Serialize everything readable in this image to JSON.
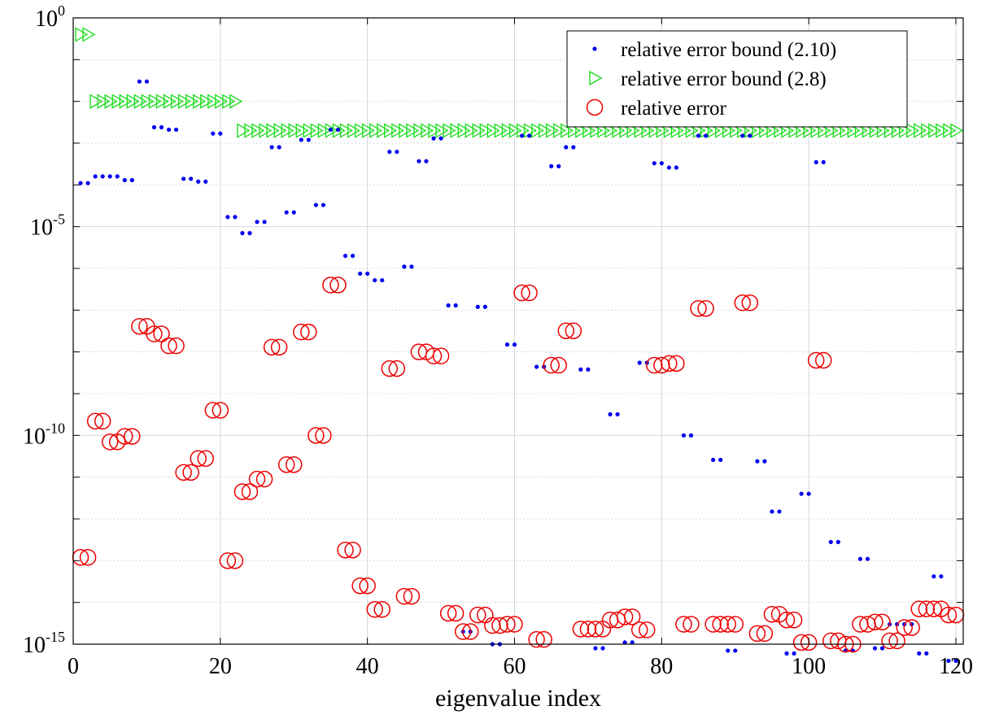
{
  "chart_data": {
    "type": "scatter",
    "xlabel": "eigenvalue index",
    "ylabel": "",
    "title": "",
    "xlim": [
      0,
      121
    ],
    "ylim_log10": [
      -15,
      0
    ],
    "yscale": "log",
    "grid": true,
    "legend_position": "top-right",
    "x_ticks": [
      "0",
      "20",
      "40",
      "60",
      "80",
      "100",
      "120"
    ],
    "y_ticks": [
      {
        "base": "10",
        "exp": "0"
      },
      {
        "base": "10",
        "exp": "-5"
      },
      {
        "base": "10",
        "exp": "-10"
      },
      {
        "base": "10",
        "exp": "-15"
      }
    ],
    "series": [
      {
        "name": "relative error bound (2.10)",
        "marker": "dot",
        "color": "#0000ee",
        "x": [
          1,
          2,
          3,
          4,
          5,
          6,
          7,
          8,
          9,
          10,
          11,
          12,
          13,
          14,
          15,
          16,
          17,
          18,
          19,
          20,
          21,
          22,
          23,
          24,
          25,
          26,
          27,
          28,
          29,
          30,
          31,
          32,
          33,
          34,
          35,
          36,
          37,
          38,
          39,
          40,
          41,
          42,
          43,
          44,
          45,
          46,
          47,
          48,
          49,
          50,
          51,
          52,
          53,
          54,
          55,
          56,
          57,
          58,
          59,
          60,
          61,
          62,
          63,
          64,
          65,
          66,
          67,
          68,
          69,
          70,
          71,
          72,
          73,
          74,
          75,
          76,
          77,
          78,
          79,
          80,
          81,
          82,
          83,
          84,
          85,
          86,
          87,
          88,
          89,
          90,
          91,
          92,
          93,
          94,
          95,
          96,
          97,
          98,
          99,
          100,
          101,
          102,
          103,
          104,
          105,
          106,
          107,
          108,
          109,
          110,
          111,
          112,
          113,
          114,
          115,
          116,
          117,
          118,
          119,
          120
        ],
        "y": [
          "1.1e-4",
          "1.1e-4",
          "1.6e-4",
          "1.6e-4",
          "1.6e-4",
          "1.6e-4",
          "1.3e-4",
          "1.3e-4",
          "0.03",
          "0.03",
          "2.4e-3",
          "2.4e-3",
          "2.1e-3",
          "2.1e-3",
          "1.4e-4",
          "1.4e-4",
          "1.2e-4",
          "1.2e-4",
          "1.7e-3",
          "1.7e-3",
          "1.7e-5",
          "1.7e-5",
          "7e-6",
          "7e-6",
          "1.3e-5",
          "1.3e-5",
          "8e-4",
          "8e-4",
          "2.2e-5",
          "2.2e-5",
          "1.2e-3",
          "1.2e-3",
          "3.3e-5",
          "3.3e-5",
          "2.1e-3",
          "2.1e-3",
          "2e-6",
          "2e-6",
          "7.5e-7",
          "7.5e-7",
          "5.2e-7",
          "5.2e-7",
          "6.2e-4",
          "6.2e-4",
          "1.1e-6",
          "1.1e-6",
          "3.7e-4",
          "3.7e-4",
          "1.3e-3",
          "1.3e-3",
          "1.3e-7",
          "1.3e-7",
          "2e-15",
          "2e-15",
          "1.2e-7",
          "1.2e-7",
          "1e-15",
          "1e-15",
          "1.5e-8",
          "1.5e-8",
          "1.5e-3",
          "1.5e-3",
          "4.4e-9",
          "4.4e-9",
          "2.8e-4",
          "2.8e-4",
          "8e-4",
          "8e-4",
          "3.8e-9",
          "3.8e-9",
          "8e-16",
          "8e-16",
          "3.2e-10",
          "3.2e-10",
          "1.1e-15",
          "1.1e-15",
          "5.5e-9",
          "5.5e-9",
          "3.3e-4",
          "3.3e-4",
          "2.6e-4",
          "2.6e-4",
          "1e-10",
          "1e-10",
          "1.5e-3",
          "1.5e-3",
          "2.6e-11",
          "2.6e-11",
          "7e-16",
          "7e-16",
          "1.5e-3",
          "1.5e-3",
          "2.4e-11",
          "2.4e-11",
          "1.5e-12",
          "1.5e-12",
          "6e-16",
          "6e-16",
          "4e-12",
          "4e-12",
          "3.5e-4",
          "3.5e-4",
          "2.8e-13",
          "2.8e-13",
          "7e-16",
          "7e-16",
          "1.1e-13",
          "1.1e-13",
          "8e-16",
          "8e-16",
          "3e-15",
          "3e-15",
          "3e-15",
          "3e-15",
          "6e-16",
          "6e-16",
          "4.2e-14",
          "4.2e-14",
          "4e-16",
          "4e-16"
        ]
      },
      {
        "name": "relative error bound (2.8)",
        "marker": "triangle-right",
        "color": "#22dd22",
        "x": [
          1,
          2,
          3,
          4,
          5,
          6,
          7,
          8,
          9,
          10,
          11,
          12,
          13,
          14,
          15,
          16,
          17,
          18,
          19,
          20,
          21,
          22,
          23,
          24,
          25,
          26,
          27,
          28,
          29,
          30,
          31,
          32,
          33,
          34,
          35,
          36,
          37,
          38,
          39,
          40,
          41,
          42,
          43,
          44,
          45,
          46,
          47,
          48,
          49,
          50,
          51,
          52,
          53,
          54,
          55,
          56,
          57,
          58,
          59,
          60,
          61,
          62,
          63,
          64,
          65,
          66,
          67,
          68,
          69,
          70,
          71,
          72,
          73,
          74,
          75,
          76,
          77,
          78,
          79,
          80,
          81,
          82,
          83,
          84,
          85,
          86,
          87,
          88,
          89,
          90,
          91,
          92,
          93,
          94,
          95,
          96,
          97,
          98,
          99,
          100,
          101,
          102,
          103,
          104,
          105,
          106,
          107,
          108,
          109,
          110,
          111,
          112,
          113,
          114,
          115,
          116,
          117,
          118,
          119,
          120
        ],
        "y": [
          "0.4",
          "0.4",
          "0.01",
          "0.01",
          "0.01",
          "0.01",
          "0.01",
          "0.01",
          "0.01",
          "0.01",
          "0.01",
          "0.01",
          "0.01",
          "0.01",
          "0.01",
          "0.01",
          "0.01",
          "0.01",
          "0.01",
          "0.01",
          "0.01",
          "0.01",
          "0.002",
          "0.002",
          "0.002",
          "0.002",
          "0.002",
          "0.002",
          "0.002",
          "0.002",
          "0.002",
          "0.002",
          "0.002",
          "0.002",
          "0.002",
          "0.002",
          "0.002",
          "0.002",
          "0.002",
          "0.002",
          "0.002",
          "0.002",
          "0.002",
          "0.002",
          "0.002",
          "0.002",
          "0.002",
          "0.002",
          "0.002",
          "0.002",
          "0.002",
          "0.002",
          "0.002",
          "0.002",
          "0.002",
          "0.002",
          "0.002",
          "0.002",
          "0.002",
          "0.002",
          "0.002",
          "0.002",
          "0.002",
          "0.002",
          "0.002",
          "0.002",
          "0.002",
          "0.002",
          "0.002",
          "0.002",
          "0.002",
          "0.002",
          "0.002",
          "0.002",
          "0.002",
          "0.002",
          "0.002",
          "0.002",
          "0.002",
          "0.002",
          "0.002",
          "0.002",
          "0.002",
          "0.002",
          "0.002",
          "0.002",
          "0.002",
          "0.002",
          "0.002",
          "0.002",
          "0.002",
          "0.002",
          "0.002",
          "0.002",
          "0.002",
          "0.002",
          "0.002",
          "0.002",
          "0.002",
          "0.002",
          "0.002",
          "0.002",
          "0.002",
          "0.002",
          "0.002",
          "0.002",
          "0.002",
          "0.002",
          "0.002",
          "0.002",
          "0.002",
          "0.002",
          "0.002",
          "0.002",
          "0.002",
          "0.002",
          "0.002",
          "0.002",
          "0.002",
          "0.002"
        ]
      },
      {
        "name": "relative error",
        "marker": "circle-open",
        "color": "#ee0000",
        "x": [
          1,
          2,
          3,
          4,
          5,
          6,
          7,
          8,
          9,
          10,
          11,
          12,
          13,
          14,
          15,
          16,
          17,
          18,
          19,
          20,
          21,
          22,
          23,
          24,
          25,
          26,
          27,
          28,
          29,
          30,
          31,
          32,
          33,
          34,
          35,
          36,
          37,
          38,
          39,
          40,
          41,
          42,
          43,
          44,
          45,
          46,
          47,
          48,
          49,
          50,
          51,
          52,
          53,
          54,
          55,
          56,
          57,
          58,
          59,
          60,
          61,
          62,
          63,
          64,
          65,
          66,
          67,
          68,
          69,
          70,
          71,
          72,
          73,
          74,
          75,
          76,
          77,
          78,
          79,
          80,
          81,
          82,
          83,
          84,
          85,
          86,
          87,
          88,
          89,
          90,
          91,
          92,
          93,
          94,
          95,
          96,
          97,
          98,
          99,
          100,
          101,
          102,
          103,
          104,
          105,
          106,
          107,
          108,
          109,
          110,
          111,
          112,
          113,
          114,
          115,
          116,
          117,
          118,
          119,
          120
        ],
        "y": [
          "1.2e-13",
          "1.2e-13",
          "2.2e-10",
          "2.2e-10",
          "7e-11",
          "7e-11",
          "9.5e-11",
          "9.5e-11",
          "4.1e-8",
          "4.1e-8",
          "2.7e-8",
          "2.7e-8",
          "1.4e-8",
          "1.4e-8",
          "1.3e-11",
          "1.3e-11",
          "2.8e-11",
          "2.8e-11",
          "4e-10",
          "4e-10",
          "1e-13",
          "1e-13",
          "4.5e-12",
          "4.5e-12",
          "9e-12",
          "9e-12",
          "1.3e-8",
          "1.3e-8",
          "2e-11",
          "2e-11",
          "3e-8",
          "3e-8",
          "1e-10",
          "1e-10",
          "4e-7",
          "4e-7",
          "1.8e-13",
          "1.8e-13",
          "2.5e-14",
          "2.5e-14",
          "6.8e-15",
          "6.8e-15",
          "4e-9",
          "4e-9",
          "1.4e-14",
          "1.4e-14",
          "1e-8",
          "1e-8",
          "8e-9",
          "8e-9",
          "5.5e-15",
          "5.5e-15",
          "2e-15",
          "2e-15",
          "5e-15",
          "5e-15",
          "2.8e-15",
          "2.8e-15",
          "3e-15",
          "3e-15",
          "2.6e-7",
          "2.6e-7",
          "1.3e-15",
          "1.3e-15",
          "4.8e-9",
          "4.8e-9",
          "3.2e-8",
          "3.2e-8",
          "2.3e-15",
          "2.3e-15",
          "2.3e-15",
          "2.3e-15",
          "3.8e-15",
          "3.8e-15",
          "4.5e-15",
          "4.5e-15",
          "2.2e-15",
          "2.2e-15",
          "4.8e-9",
          "4.8e-9",
          "5.3e-9",
          "5.3e-9",
          "3e-15",
          "3e-15",
          "1.1e-7",
          "1.1e-7",
          "3e-15",
          "3e-15",
          "3e-15",
          "3e-15",
          "1.5e-7",
          "1.5e-7",
          "1.8e-15",
          "1.8e-15",
          "5.2e-15",
          "5.2e-15",
          "3.8e-15",
          "3.8e-15",
          "1.1e-15",
          "1.1e-15",
          "6.3e-9",
          "6.3e-9",
          "1.2e-15",
          "1.2e-15",
          "1e-15",
          "1e-15",
          "3e-15",
          "3e-15",
          "3.4e-15",
          "3.4e-15",
          "1.2e-15",
          "1.2e-15",
          "2.5e-15",
          "2.5e-15",
          "7e-15",
          "7e-15",
          "7e-15",
          "7e-15",
          "5e-15",
          "5e-15"
        ]
      }
    ]
  }
}
